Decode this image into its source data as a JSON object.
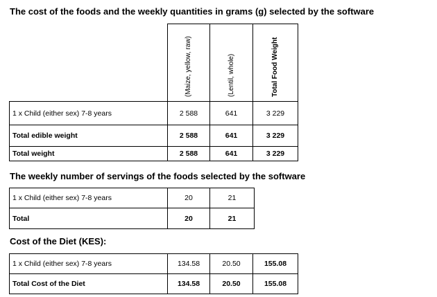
{
  "section1": {
    "title": "The cost of the foods and the weekly quantities in grams (g) selected by the software",
    "columns": [
      "(Maize, yellow, raw)",
      "(Lentil, whole)",
      "Total Food Weight"
    ],
    "rows": [
      {
        "label": "1 x Child (either sex) 7-8 years",
        "values": [
          "2 588",
          "641",
          "3 229"
        ]
      },
      {
        "label": "Total edible weight",
        "values": [
          "2 588",
          "641",
          "3 229"
        ]
      },
      {
        "label": "Total weight",
        "values": [
          "2 588",
          "641",
          "3 229"
        ]
      }
    ]
  },
  "section2": {
    "title": "The weekly number of servings of the foods selected by the software",
    "rows": [
      {
        "label": "1 x Child (either sex) 7-8 years",
        "values": [
          "20",
          "21"
        ]
      },
      {
        "label": "Total",
        "values": [
          "20",
          "21"
        ]
      }
    ]
  },
  "section3": {
    "title": "Cost of the Diet (KES):",
    "rows": [
      {
        "label": "1 x Child (either sex) 7-8 years",
        "values": [
          "134.58",
          "20.50",
          "155.08"
        ]
      },
      {
        "label": "Total Cost of the Diet",
        "values": [
          "134.58",
          "20.50",
          "155.08"
        ]
      }
    ]
  }
}
